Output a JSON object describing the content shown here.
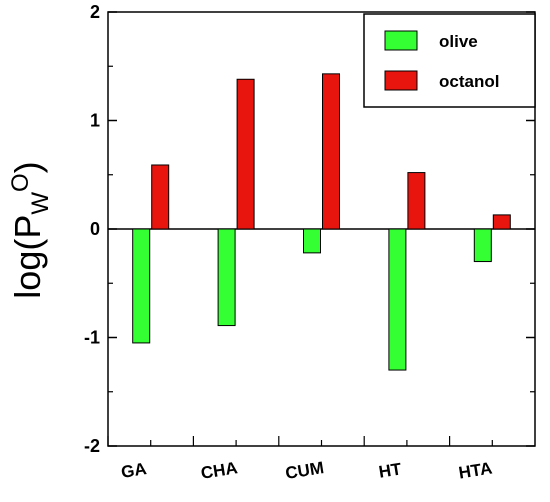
{
  "chart_data": {
    "type": "bar",
    "categories": [
      "GA",
      "CHA",
      "CUM",
      "HT",
      "HTA"
    ],
    "series": [
      {
        "name": "olive",
        "color": "#33ff33",
        "values": [
          -1.05,
          -0.89,
          -0.22,
          -1.3,
          -0.3
        ]
      },
      {
        "name": "octanol",
        "color": "#e8150f",
        "values": [
          0.59,
          1.38,
          1.43,
          0.52,
          0.13
        ]
      }
    ],
    "ylabel": {
      "base": "log(P",
      "sub": "W",
      "sup": "O",
      "close": ")"
    },
    "ylim": [
      -2,
      2
    ],
    "yticks": [
      "-2",
      "-1",
      "0",
      "1",
      "2"
    ],
    "legend": {
      "position": "top-right"
    },
    "grid": false
  }
}
